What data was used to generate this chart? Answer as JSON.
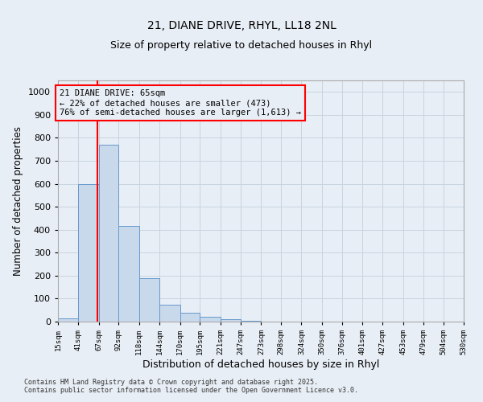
{
  "title_line1": "21, DIANE DRIVE, RHYL, LL18 2NL",
  "title_line2": "Size of property relative to detached houses in Rhyl",
  "xlabel": "Distribution of detached houses by size in Rhyl",
  "ylabel": "Number of detached properties",
  "bar_edges": [
    15,
    41,
    67,
    92,
    118,
    144,
    170,
    195,
    221,
    247,
    273,
    298,
    324,
    350,
    376,
    401,
    427,
    453,
    479,
    504,
    530
  ],
  "bar_heights": [
    15,
    600,
    770,
    415,
    190,
    75,
    40,
    20,
    10,
    3,
    0,
    0,
    0,
    0,
    0,
    0,
    0,
    0,
    0,
    0
  ],
  "bar_color": "#c9d9ec",
  "bar_edge_color": "#6699cc",
  "grid_color": "#c8d4e0",
  "bg_color": "#e8eef5",
  "red_line_x": 65,
  "annotation_line1": "21 DIANE DRIVE: 65sqm",
  "annotation_line2": "← 22% of detached houses are smaller (473)",
  "annotation_line3": "76% of semi-detached houses are larger (1,613) →",
  "ylim": [
    0,
    1050
  ],
  "yticks": [
    0,
    100,
    200,
    300,
    400,
    500,
    600,
    700,
    800,
    900,
    1000
  ],
  "footnote": "Contains HM Land Registry data © Crown copyright and database right 2025.\nContains public sector information licensed under the Open Government Licence v3.0.",
  "tick_labels": [
    "15sqm",
    "41sqm",
    "67sqm",
    "92sqm",
    "118sqm",
    "144sqm",
    "170sqm",
    "195sqm",
    "221sqm",
    "247sqm",
    "273sqm",
    "298sqm",
    "324sqm",
    "350sqm",
    "376sqm",
    "401sqm",
    "427sqm",
    "453sqm",
    "479sqm",
    "504sqm",
    "530sqm"
  ]
}
